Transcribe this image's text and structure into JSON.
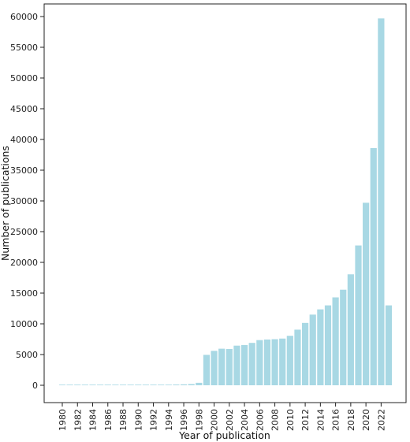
{
  "chart_data": {
    "type": "bar",
    "title": "",
    "xlabel": "Year of publication",
    "ylabel": "Number of publications",
    "ylim": [
      0,
      60000
    ],
    "yticks": [
      0,
      5000,
      10000,
      15000,
      20000,
      25000,
      30000,
      35000,
      40000,
      45000,
      50000,
      55000,
      60000
    ],
    "ytick_labels": [
      "0",
      "5000",
      "10000",
      "15000",
      "20000",
      "25000",
      "30000",
      "35000",
      "40000",
      "45000",
      "50000",
      "55000",
      "60000"
    ],
    "xtick_labels": [
      "1980",
      "1982",
      "1984",
      "1986",
      "1988",
      "1990",
      "1992",
      "1994",
      "1996",
      "1998",
      "2000",
      "2002",
      "2004",
      "2006",
      "2008",
      "2010",
      "2012",
      "2014",
      "2016",
      "2018",
      "2020",
      "2022"
    ],
    "categories": [
      1980,
      1981,
      1982,
      1983,
      1984,
      1985,
      1986,
      1987,
      1988,
      1989,
      1990,
      1991,
      1992,
      1993,
      1994,
      1995,
      1996,
      1997,
      1998,
      1999,
      2000,
      2001,
      2002,
      2003,
      2004,
      2005,
      2006,
      2007,
      2008,
      2009,
      2010,
      2011,
      2012,
      2013,
      2014,
      2015,
      2016,
      2017,
      2018,
      2019,
      2020,
      2021,
      2022,
      2023
    ],
    "values": [
      10,
      10,
      10,
      10,
      10,
      20,
      20,
      20,
      30,
      30,
      40,
      50,
      60,
      80,
      100,
      120,
      150,
      200,
      400,
      4950,
      5600,
      5950,
      5900,
      6450,
      6550,
      6900,
      7350,
      7450,
      7500,
      7600,
      8050,
      9050,
      10150,
      11500,
      12350,
      13000,
      14300,
      15550,
      18050,
      22750,
      29700,
      38600,
      59700,
      13000
    ],
    "bar_color": "#a8d8e4",
    "grid": false,
    "legend": "none"
  }
}
